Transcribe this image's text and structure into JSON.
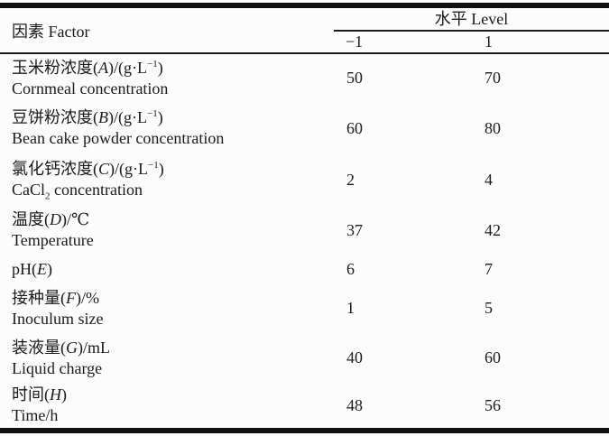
{
  "table": {
    "header": {
      "factor": "因素 Factor",
      "level": "水平 Level",
      "low": "−1",
      "high": "1"
    },
    "rows": [
      {
        "zh_pre": "玉米粉浓度(",
        "var": "A",
        "zh_mid": ")/(g·L",
        "sup": "−1",
        "zh_end": ")",
        "en": "Cornmeal concentration",
        "en_sub": "",
        "en_end": "",
        "low": "50",
        "high": "70"
      },
      {
        "zh_pre": "豆饼粉浓度(",
        "var": "B",
        "zh_mid": ")/(g·L",
        "sup": "−1",
        "zh_end": ")",
        "en": "Bean cake powder concentration",
        "en_sub": "",
        "en_end": "",
        "low": "60",
        "high": "80"
      },
      {
        "zh_pre": "氯化钙浓度(",
        "var": "C",
        "zh_mid": ")/(g·L",
        "sup": "−1",
        "zh_end": ")",
        "en": "CaCl",
        "en_sub": "2",
        "en_end": " concentration",
        "low": "2",
        "high": "4"
      },
      {
        "zh_pre": "温度(",
        "var": "D",
        "zh_mid": ")/℃",
        "sup": "",
        "zh_end": "",
        "en": "Temperature",
        "en_sub": "",
        "en_end": "",
        "low": "37",
        "high": "42"
      },
      {
        "zh_pre": "pH(",
        "var": "E",
        "zh_mid": ")",
        "sup": "",
        "zh_end": "",
        "en": "",
        "en_sub": "",
        "en_end": "",
        "low": "6",
        "high": "7"
      },
      {
        "zh_pre": "接种量(",
        "var": "F",
        "zh_mid": ")/%",
        "sup": "",
        "zh_end": "",
        "en": "Inoculum size",
        "en_sub": "",
        "en_end": "",
        "low": "1",
        "high": "5"
      },
      {
        "zh_pre": "装液量(",
        "var": "G",
        "zh_mid": ")/mL",
        "sup": "",
        "zh_end": "",
        "en": "Liquid charge",
        "en_sub": "",
        "en_end": "",
        "low": "40",
        "high": "60"
      },
      {
        "zh_pre": "时间(",
        "var": "H",
        "zh_mid": ")",
        "sup": "",
        "zh_end": "",
        "en": "Time/h",
        "en_sub": "",
        "en_end": "",
        "low": "48",
        "high": "56"
      }
    ]
  },
  "colors": {
    "background": "#fcfcfc",
    "text": "#1b1b1b",
    "rule": "#1a1a1a"
  }
}
